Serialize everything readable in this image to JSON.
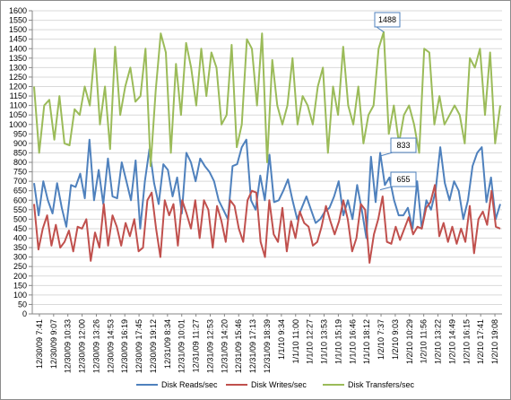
{
  "chart_data": {
    "type": "line",
    "title": "",
    "xlabel": "",
    "ylabel": "",
    "ylim": [
      0,
      1600
    ],
    "ytick_step": 50,
    "grid": true,
    "legend_position": "bottom",
    "x_tick_labels": [
      "12/30/09 7:41",
      "12/30/09 9:07",
      "12/30/09 10:33",
      "12/30/09 12:00",
      "12/30/09 13:26",
      "12/30/09 14:53",
      "12/30/09 16:19",
      "12/30/09 17:45",
      "12/30/09 19:12",
      "12/31/09 8:34",
      "12/31/09 10:01",
      "12/31/09 11:27",
      "12/31/09 12:53",
      "12/31/09 14:20",
      "12/31/09 15:46",
      "12/31/09 17:13",
      "12/31/09 18:39",
      "1/1/10 9:34",
      "1/1/10 11:00",
      "1/1/10 12:27",
      "1/1/10 13:53",
      "1/1/10 15:19",
      "1/1/10 16:46",
      "1/1/10 18:12",
      "1/2/10 7:37",
      "1/2/10 9:03",
      "1/2/10 10:29",
      "1/2/10 11:56",
      "1/2/10 13:22",
      "1/2/10 14:49",
      "1/2/10 16:15",
      "1/2/10 17:41",
      "1/2/10 19:08"
    ],
    "series": [
      {
        "name": "Disk Reads/sec",
        "color": "#4f81bd",
        "values": [
          690,
          520,
          700,
          600,
          530,
          690,
          560,
          460,
          680,
          670,
          740,
          610,
          920,
          600,
          760,
          580,
          820,
          620,
          610,
          800,
          700,
          600,
          810,
          450,
          700,
          870,
          690,
          580,
          790,
          760,
          620,
          720,
          530,
          850,
          800,
          700,
          820,
          780,
          750,
          700,
          600,
          550,
          500,
          780,
          790,
          880,
          920,
          600,
          550,
          730,
          600,
          840,
          590,
          600,
          650,
          710,
          600,
          500,
          560,
          620,
          550,
          480,
          500,
          540,
          560,
          620,
          700,
          520,
          600,
          500,
          680,
          550,
          400,
          830,
          590,
          850,
          680,
          720,
          600,
          520,
          520,
          560,
          450,
          700,
          450,
          600,
          550,
          650,
          880,
          690,
          600,
          700,
          650,
          500,
          600,
          780,
          850,
          880,
          590,
          720,
          500,
          580
        ]
      },
      {
        "name": "Disk Writes/sec",
        "color": "#c0504d",
        "values": [
          580,
          340,
          450,
          520,
          360,
          470,
          350,
          380,
          440,
          330,
          460,
          450,
          500,
          280,
          430,
          350,
          580,
          360,
          520,
          460,
          360,
          480,
          410,
          500,
          330,
          350,
          600,
          640,
          450,
          300,
          600,
          520,
          580,
          360,
          600,
          530,
          450,
          600,
          400,
          600,
          550,
          350,
          570,
          490,
          380,
          600,
          570,
          450,
          380,
          600,
          650,
          640,
          380,
          300,
          600,
          420,
          380,
          560,
          330,
          490,
          400,
          540,
          480,
          460,
          360,
          380,
          460,
          570,
          490,
          420,
          490,
          600,
          500,
          330,
          400,
          580,
          550,
          270,
          420,
          500,
          620,
          380,
          370,
          460,
          390,
          450,
          510,
          420,
          460,
          450,
          560,
          590,
          680,
          410,
          480,
          380,
          460,
          370,
          450,
          380,
          570,
          320,
          500,
          540,
          470,
          650,
          460,
          450
        ]
      },
      {
        "name": "Disk Transfers/sec",
        "color": "#9bbb59",
        "values": [
          1200,
          850,
          1100,
          1130,
          920,
          1150,
          900,
          890,
          1080,
          1050,
          1200,
          1100,
          1400,
          1000,
          1200,
          870,
          1410,
          1050,
          1200,
          1300,
          1120,
          1150,
          1400,
          780,
          1180,
          1480,
          1380,
          850,
          1320,
          1050,
          1430,
          1300,
          1100,
          1400,
          1150,
          1380,
          1300,
          1000,
          1050,
          1420,
          880,
          1000,
          1450,
          1400,
          1100,
          1480,
          800,
          1340,
          1100,
          1000,
          1100,
          1350,
          1000,
          1150,
          1100,
          1000,
          1200,
          1300,
          850,
          1200,
          1050,
          1410,
          1100,
          1000,
          1200,
          900,
          1050,
          1100,
          1400,
          1488,
          950,
          1100,
          900,
          1050,
          1100,
          1000,
          850,
          1400,
          1380,
          1000,
          1150,
          1000,
          1050,
          1100,
          1050,
          900,
          1350,
          1300,
          1400,
          1050,
          1380,
          900,
          1100
        ]
      }
    ],
    "annotations": [
      {
        "text": "1488",
        "series": "Disk Transfers/sec"
      },
      {
        "text": "833",
        "series": "Disk Reads/sec"
      },
      {
        "text": "655",
        "series": "Disk Writes/sec"
      }
    ]
  }
}
